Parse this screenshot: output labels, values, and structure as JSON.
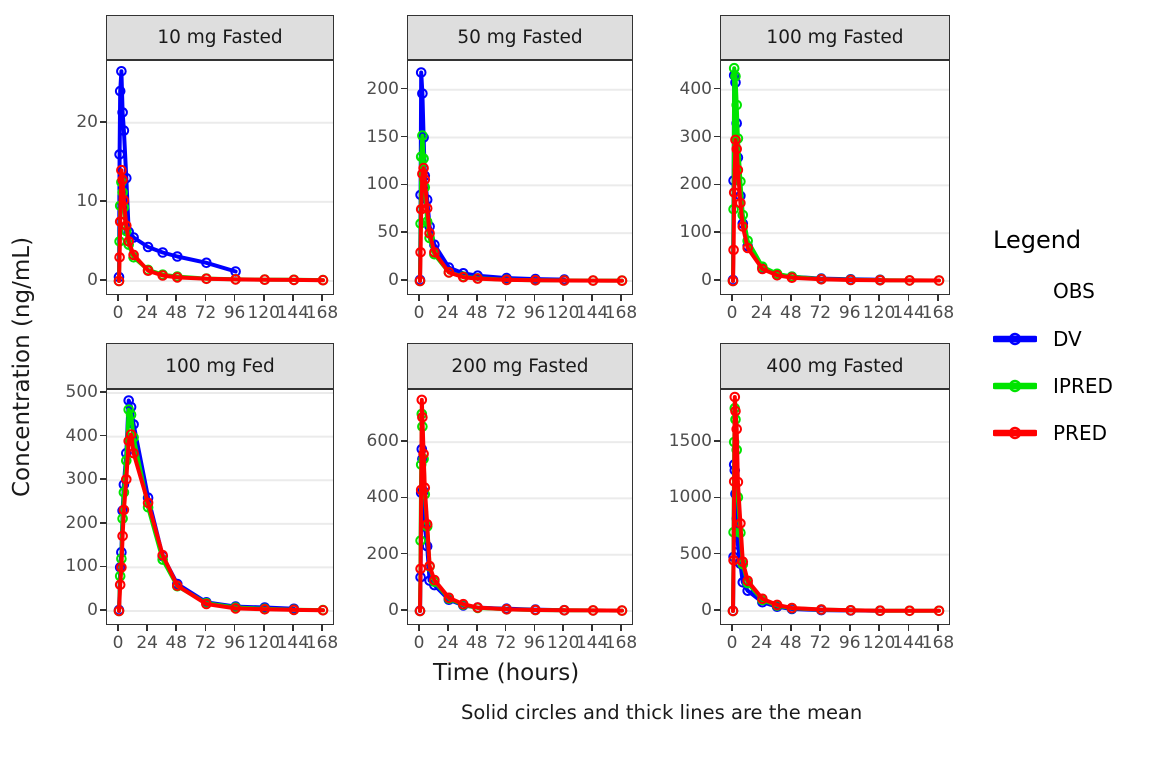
{
  "figure": {
    "y_axis_label": "Concentration (ng/mL)",
    "x_axis_label": "Time (hours)",
    "caption": "Solid circles and thick lines are the mean"
  },
  "legend": {
    "title": "Legend",
    "subtitle": "OBS",
    "entries": [
      {
        "name": "DV",
        "label": "DV",
        "color": "#0000FF"
      },
      {
        "name": "IPRED",
        "label": "IPRED",
        "color": "#00E400"
      },
      {
        "name": "PRED",
        "label": "PRED",
        "color": "#FF0000"
      }
    ]
  },
  "theme": {
    "series_colors": {
      "DV": "#0000FF",
      "IPRED": "#00E400",
      "PRED": "#FF0000"
    },
    "grid_color": "#EBEBEB",
    "strip_fill": "#DEDEDE",
    "border_color": "#333333",
    "tick_text_color": "#4D4D4D"
  },
  "chart_data": {
    "type": "line",
    "x_ticks": [
      0,
      24,
      48,
      72,
      96,
      120,
      144,
      168
    ],
    "x_range": [
      0,
      168
    ],
    "grid": "horizontal-only",
    "legend_position": "right",
    "facets": [
      {
        "title": "10 mg Fasted",
        "y_ticks": [
          0,
          10,
          20
        ],
        "y_top": 27.8,
        "series": [
          {
            "name": "DV",
            "x": [
              0,
              0.5,
              1,
              2,
              3,
              4,
              6,
              8,
              12,
              24,
              36,
              48,
              72,
              96
            ],
            "y": [
              0.5,
              16,
              24,
              26.5,
              21.3,
              19,
              13,
              6.2,
              5.5,
              4.3,
              3.6,
              3.1,
              2.3,
              1.2
            ]
          },
          {
            "name": "IPRED",
            "x": [
              0,
              0.5,
              1,
              2,
              3,
              4,
              6,
              8,
              12,
              24,
              36,
              48,
              72,
              96,
              120,
              144,
              168
            ],
            "y": [
              0,
              5,
              9.5,
              12.5,
              11.2,
              9.3,
              6.3,
              4.6,
              3.0,
              1.4,
              0.8,
              0.55,
              0.3,
              0.22,
              0.18,
              0.15,
              0.12
            ]
          },
          {
            "name": "PRED",
            "x": [
              0,
              0.5,
              1,
              2,
              3,
              4,
              6,
              8,
              12,
              24,
              36,
              48,
              72,
              96,
              120,
              144,
              168
            ],
            "y": [
              0,
              3,
              7.5,
              14,
              12.8,
              10.2,
              7,
              5,
              3.3,
              1.3,
              0.7,
              0.45,
              0.28,
              0.2,
              0.17,
              0.14,
              0.1
            ]
          }
        ]
      },
      {
        "title": "50 mg Fasted",
        "y_ticks": [
          0,
          50,
          100,
          150,
          200
        ],
        "y_top": 230,
        "series": [
          {
            "name": "DV",
            "x": [
              0,
              0.5,
              1,
              2,
              3,
              4,
              6,
              8,
              12,
              24,
              36,
              48,
              72,
              96,
              120
            ],
            "y": [
              1,
              90,
              218,
              196,
              150,
              110,
              85,
              57,
              38,
              14,
              8,
              5.5,
              3,
              2,
              1.5
            ]
          },
          {
            "name": "IPRED",
            "x": [
              0,
              0.5,
              1,
              2,
              3,
              4,
              6,
              8,
              12,
              24,
              36,
              48,
              72,
              96,
              120,
              144,
              168
            ],
            "y": [
              0,
              60,
              130,
              152,
              128,
              98,
              62,
              45,
              28,
              9,
              4.5,
              2.8,
              1.4,
              0.8,
              0.6,
              0.5,
              0.4
            ]
          },
          {
            "name": "PRED",
            "x": [
              0,
              0.5,
              1,
              2,
              3,
              4,
              6,
              8,
              12,
              24,
              36,
              48,
              72,
              96,
              120,
              144,
              168
            ],
            "y": [
              0,
              30,
              75,
              112,
              118,
              106,
              76,
              50,
              30,
              9,
              4,
              2.5,
              1.2,
              0.7,
              0.5,
              0.4,
              0.3
            ]
          }
        ]
      },
      {
        "title": "100 mg Fasted",
        "y_ticks": [
          0,
          100,
          200,
          300,
          400
        ],
        "y_top": 460,
        "series": [
          {
            "name": "DV",
            "x": [
              0,
              0.5,
              1,
              2,
              3,
              4,
              6,
              8,
              12,
              24,
              36,
              48,
              72,
              96,
              120
            ],
            "y": [
              2,
              210,
              430,
              415,
              330,
              258,
              178,
              120,
              73,
              27,
              14,
              9,
              5,
              3.5,
              2.5
            ]
          },
          {
            "name": "IPRED",
            "x": [
              0,
              0.5,
              1,
              2,
              3,
              4,
              6,
              8,
              12,
              24,
              36,
              48,
              72,
              96,
              120,
              144,
              168
            ],
            "y": [
              0,
              150,
              445,
              428,
              368,
              298,
              208,
              138,
              84,
              30,
              15,
              9,
              4,
              2.5,
              1.8,
              1.2,
              1
            ]
          },
          {
            "name": "PRED",
            "x": [
              0,
              0.5,
              1,
              2,
              3,
              4,
              6,
              8,
              12,
              24,
              36,
              48,
              72,
              96,
              120,
              144,
              168
            ],
            "y": [
              0,
              65,
              185,
              295,
              276,
              232,
              163,
              114,
              69,
              25,
              12,
              7,
              3.5,
              2,
              1.5,
              1.2,
              1
            ]
          }
        ]
      },
      {
        "title": "100 mg Fed",
        "y_ticks": [
          0,
          100,
          200,
          300,
          400,
          500
        ],
        "y_top": 507,
        "series": [
          {
            "name": "DV",
            "x": [
              0,
              1,
              2,
              3,
              4,
              6,
              8,
              10,
              12,
              24,
              36,
              48,
              72,
              96,
              120,
              144
            ],
            "y": [
              2,
              100,
              135,
              230,
              290,
              362,
              483,
              468,
              428,
              260,
              126,
              62,
              20,
              10,
              8,
              5
            ]
          },
          {
            "name": "IPRED",
            "x": [
              0,
              1,
              2,
              3,
              4,
              6,
              8,
              10,
              12,
              24,
              36,
              48,
              72,
              96,
              120,
              144,
              168
            ],
            "y": [
              0,
              80,
              120,
              212,
              272,
              345,
              462,
              450,
              398,
              238,
              118,
              57,
              18,
              8,
              5,
              3,
              2
            ]
          },
          {
            "name": "PRED",
            "x": [
              0,
              1,
              2,
              3,
              4,
              6,
              8,
              10,
              12,
              24,
              36,
              48,
              72,
              96,
              120,
              144,
              168
            ],
            "y": [
              0,
              60,
              100,
              172,
              232,
              302,
              390,
              405,
              362,
              248,
              128,
              58,
              16,
              6,
              4,
              2.5,
              1.5
            ]
          }
        ]
      },
      {
        "title": "200 mg Fasted",
        "y_ticks": [
          0,
          200,
          400,
          600
        ],
        "y_top": 785,
        "series": [
          {
            "name": "DV",
            "x": [
              0,
              0.5,
              1,
              1.5,
              2,
              3,
              4,
              6,
              8,
              12,
              24,
              36,
              48,
              72,
              96,
              120
            ],
            "y": [
              1,
              120,
              420,
              575,
              540,
              425,
              300,
              230,
              108,
              92,
              40,
              20,
              12,
              8,
              5,
              3
            ]
          },
          {
            "name": "IPRED",
            "x": [
              0,
              0.5,
              1,
              1.5,
              2,
              3,
              4,
              6,
              8,
              12,
              24,
              36,
              48,
              72,
              96,
              120,
              144,
              168
            ],
            "y": [
              0,
              250,
              520,
              700,
              655,
              540,
              415,
              300,
              158,
              104,
              44,
              22,
              11,
              6,
              3.5,
              2.5,
              2,
              1.5
            ]
          },
          {
            "name": "PRED",
            "x": [
              0,
              0.5,
              1,
              1.5,
              2,
              3,
              4,
              6,
              8,
              12,
              24,
              36,
              48,
              72,
              96,
              120,
              144,
              168
            ],
            "y": [
              0,
              150,
              430,
              750,
              688,
              558,
              438,
              308,
              160,
              110,
              47,
              24,
              12,
              6,
              3.5,
              2.5,
              2,
              1.5
            ]
          }
        ]
      },
      {
        "title": "400 mg Fasted",
        "y_ticks": [
          0,
          500,
          1000,
          1500
        ],
        "y_top": 1962,
        "series": [
          {
            "name": "DV",
            "x": [
              0,
              0.5,
              1,
              1.5,
              2,
              3,
              4,
              6,
              8,
              12,
              24,
              36,
              48,
              72,
              96,
              120
            ],
            "y": [
              2,
              480,
              1300,
              1250,
              1040,
              820,
              590,
              420,
              255,
              180,
              78,
              38,
              18,
              8,
              4,
              2
            ]
          },
          {
            "name": "IPRED",
            "x": [
              0,
              0.5,
              1,
              1.5,
              2,
              3,
              4,
              6,
              8,
              12,
              24,
              36,
              48,
              72,
              96,
              120,
              144,
              168
            ],
            "y": [
              0,
              700,
              1500,
              1800,
              1700,
              1430,
              1010,
              695,
              415,
              248,
              98,
              48,
              24,
              12,
              6,
              3,
              2,
              1.5
            ]
          },
          {
            "name": "PRED",
            "x": [
              0,
              0.5,
              1,
              1.5,
              2,
              3,
              4,
              6,
              8,
              12,
              24,
              36,
              48,
              72,
              96,
              120,
              144,
              168
            ],
            "y": [
              0,
              450,
              1150,
              1900,
              1775,
              1615,
              1145,
              778,
              438,
              268,
              108,
              54,
              27,
              13,
              6,
              3,
              2,
              1.5
            ]
          }
        ]
      }
    ]
  }
}
